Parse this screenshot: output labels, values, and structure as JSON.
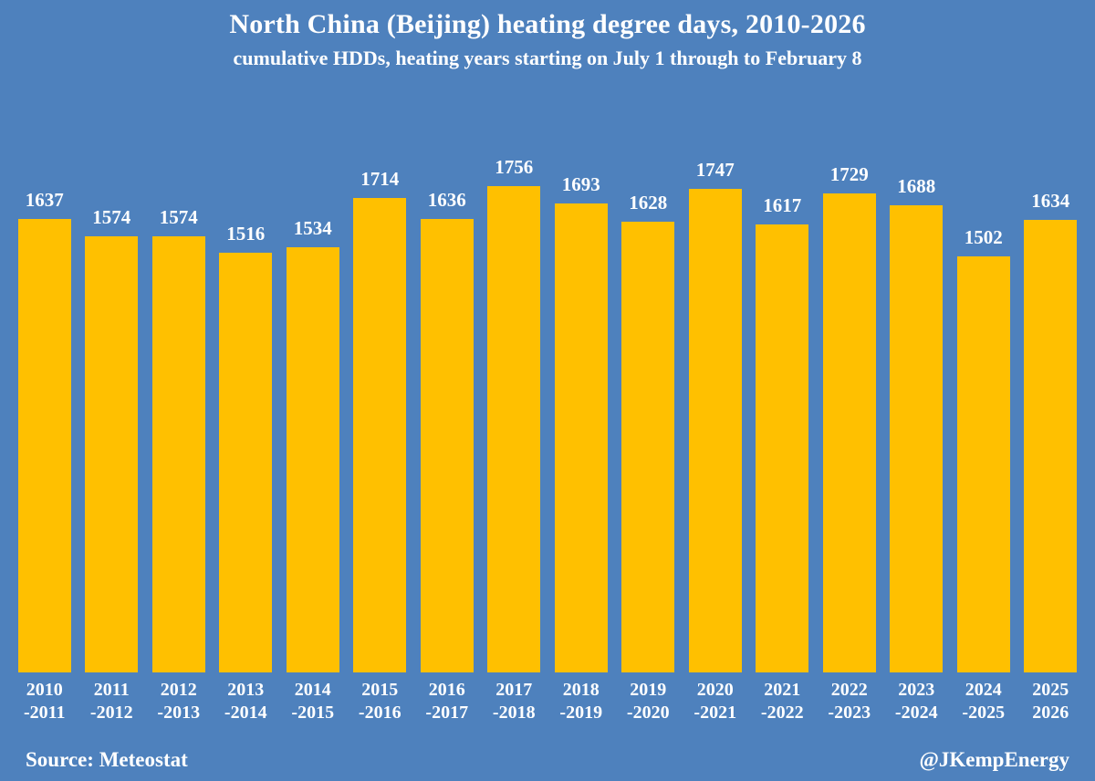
{
  "page": {
    "background_color": "#4E81BD",
    "bar_color": "#FFC000",
    "text_color": "#FFFFFF"
  },
  "header": {
    "title": "North China (Beijing) heating degree days, 2010-2026",
    "subtitle": "cumulative HDDs, heating years starting on July 1 through to February 8"
  },
  "footer": {
    "source": "Source: Meteostat",
    "credit": "@JKempEnergy"
  },
  "chart_data": {
    "type": "bar",
    "title": "North China (Beijing) heating degree days, 2010-2026",
    "subtitle": "cumulative HDDs, heating years starting on July 1 through to February 8",
    "categories": [
      "2010\n-2011",
      "2011\n-2012",
      "2012\n-2013",
      "2013\n-2014",
      "2014\n-2015",
      "2015\n-2016",
      "2016\n-2017",
      "2017\n-2018",
      "2018\n-2019",
      "2019\n-2020",
      "2020\n-2021",
      "2021\n-2022",
      "2022\n-2023",
      "2023\n-2024",
      "2024\n-2025",
      "2025\n2026"
    ],
    "values": [
      1637,
      1574,
      1574,
      1516,
      1534,
      1714,
      1636,
      1756,
      1693,
      1628,
      1747,
      1617,
      1729,
      1688,
      1502,
      1634
    ],
    "data_labels": true,
    "bar_color": "#FFC000",
    "background_color": "#4E81BD",
    "label_color": "#FFFFFF",
    "ylabel": "",
    "xlabel": "",
    "ylim": [
      0,
      1800
    ],
    "grid": false,
    "legend": false,
    "axes_visible": false,
    "source": "Source: Meteostat",
    "credit": "@JKempEnergy"
  }
}
